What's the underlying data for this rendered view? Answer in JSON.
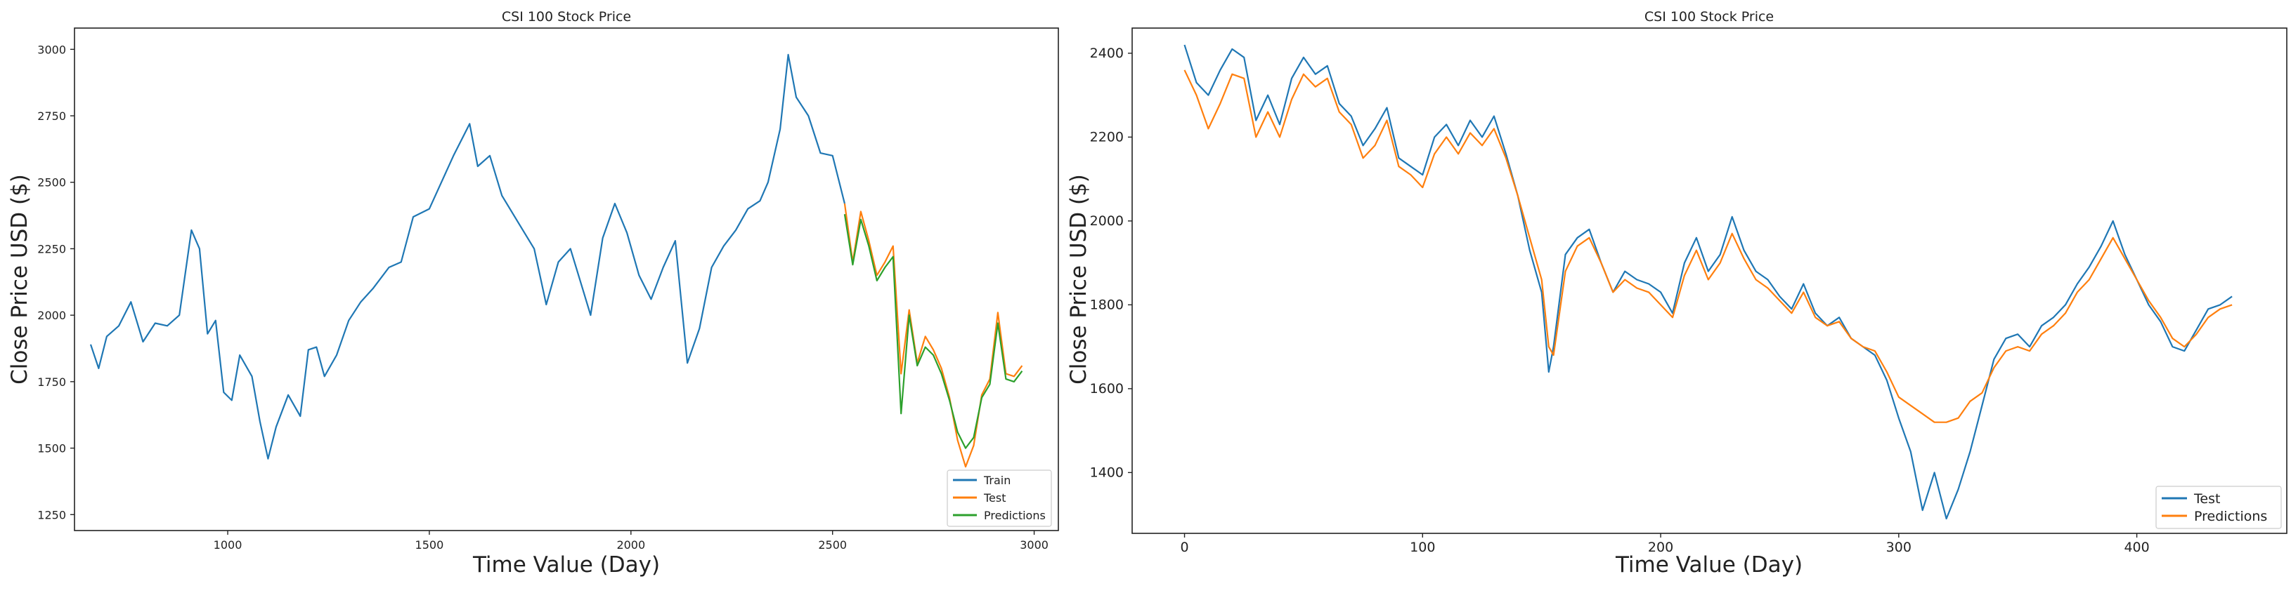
{
  "colors": {
    "train": "#1f77b4",
    "test": "#ff7f0e",
    "predictions": "#2ca02c"
  },
  "chart_data": [
    {
      "type": "line",
      "title": "CSI 100 Stock Price",
      "xlabel": "Time Value (Day)",
      "ylabel": "Close Price USD ($)",
      "xlim": [
        620,
        3060
      ],
      "ylim": [
        1190,
        3080
      ],
      "xticks": [
        1000,
        1500,
        2000,
        2500,
        3000
      ],
      "xtick_labels": [
        "1000",
        "1500",
        "2000",
        "2500",
        "3000"
      ],
      "yticks": [
        1250,
        1500,
        1750,
        2000,
        2250,
        2500,
        2750,
        3000
      ],
      "ytick_labels": [
        "1250",
        "1500",
        "1750",
        "2000",
        "2250",
        "2500",
        "2750",
        "3000"
      ],
      "legend_position": "lower-right",
      "grid": false,
      "series": [
        {
          "name": "Train",
          "color": "#1f77b4",
          "x": [
            660,
            680,
            700,
            730,
            760,
            790,
            820,
            850,
            880,
            910,
            930,
            950,
            970,
            990,
            1010,
            1030,
            1060,
            1080,
            1100,
            1120,
            1150,
            1180,
            1200,
            1220,
            1240,
            1270,
            1300,
            1330,
            1360,
            1400,
            1430,
            1460,
            1500,
            1530,
            1560,
            1600,
            1620,
            1650,
            1680,
            1720,
            1760,
            1790,
            1820,
            1850,
            1880,
            1900,
            1930,
            1960,
            1990,
            2020,
            2050,
            2080,
            2110,
            2140,
            2170,
            2200,
            2230,
            2260,
            2290,
            2320,
            2340,
            2370,
            2390,
            2410,
            2440,
            2470,
            2500,
            2530
          ],
          "values": [
            1890,
            1800,
            1920,
            1960,
            2050,
            1900,
            1970,
            1960,
            2000,
            2320,
            2250,
            1930,
            1980,
            1710,
            1680,
            1850,
            1770,
            1600,
            1460,
            1580,
            1700,
            1620,
            1870,
            1880,
            1770,
            1850,
            1980,
            2050,
            2100,
            2180,
            2200,
            2370,
            2400,
            2500,
            2600,
            2720,
            2560,
            2600,
            2450,
            2350,
            2250,
            2040,
            2200,
            2250,
            2100,
            2000,
            2290,
            2420,
            2310,
            2150,
            2060,
            2180,
            2280,
            1820,
            1950,
            2180,
            2260,
            2320,
            2400,
            2430,
            2500,
            2700,
            2980,
            2820,
            2750,
            2610,
            2600,
            2420
          ]
        },
        {
          "name": "Test",
          "color": "#ff7f0e",
          "x": [
            2530,
            2550,
            2570,
            2590,
            2610,
            2630,
            2650,
            2670,
            2690,
            2710,
            2730,
            2750,
            2770,
            2790,
            2810,
            2830,
            2850,
            2870,
            2890,
            2910,
            2930,
            2950,
            2970
          ],
          "values": [
            2420,
            2200,
            2390,
            2280,
            2150,
            2200,
            2260,
            1780,
            2020,
            1820,
            1920,
            1870,
            1800,
            1690,
            1530,
            1430,
            1510,
            1700,
            1760,
            2010,
            1780,
            1770,
            1810
          ]
        },
        {
          "name": "Predictions",
          "color": "#2ca02c",
          "x": [
            2530,
            2550,
            2570,
            2590,
            2610,
            2630,
            2650,
            2670,
            2690,
            2710,
            2730,
            2750,
            2770,
            2790,
            2810,
            2830,
            2850,
            2870,
            2890,
            2910,
            2930,
            2950,
            2970
          ],
          "values": [
            2380,
            2190,
            2360,
            2260,
            2130,
            2180,
            2220,
            1630,
            2000,
            1810,
            1880,
            1850,
            1780,
            1680,
            1560,
            1500,
            1540,
            1690,
            1740,
            1970,
            1760,
            1750,
            1790
          ]
        }
      ]
    },
    {
      "type": "line",
      "title": "CSI 100 Stock Price",
      "xlabel": "Time Value (Day)",
      "ylabel": "Close Price USD ($)",
      "xlim": [
        -22,
        463
      ],
      "ylim": [
        1255,
        2460
      ],
      "xticks": [
        0,
        100,
        200,
        300,
        400
      ],
      "xtick_labels": [
        "0",
        "100",
        "200",
        "300",
        "400"
      ],
      "yticks": [
        1400,
        1600,
        1800,
        2000,
        2200,
        2400
      ],
      "ytick_labels": [
        "1400",
        "1600",
        "1800",
        "2000",
        "2200",
        "2400"
      ],
      "legend_position": "lower-right",
      "grid": false,
      "series": [
        {
          "name": "Test",
          "color": "#1f77b4",
          "x": [
            0,
            5,
            10,
            15,
            20,
            25,
            30,
            35,
            40,
            45,
            50,
            55,
            60,
            65,
            70,
            75,
            80,
            85,
            90,
            95,
            100,
            105,
            110,
            115,
            120,
            125,
            130,
            135,
            140,
            145,
            150,
            153,
            155,
            160,
            165,
            170,
            175,
            180,
            185,
            190,
            195,
            200,
            205,
            210,
            215,
            220,
            225,
            230,
            235,
            240,
            245,
            250,
            255,
            260,
            265,
            270,
            275,
            280,
            285,
            290,
            295,
            300,
            305,
            310,
            315,
            320,
            325,
            330,
            335,
            340,
            345,
            350,
            355,
            360,
            365,
            370,
            375,
            380,
            385,
            390,
            395,
            400,
            405,
            410,
            415,
            420,
            425,
            430,
            435,
            440
          ],
          "values": [
            2420,
            2330,
            2300,
            2360,
            2410,
            2390,
            2240,
            2300,
            2230,
            2340,
            2390,
            2350,
            2370,
            2280,
            2250,
            2180,
            2220,
            2270,
            2150,
            2130,
            2110,
            2200,
            2230,
            2180,
            2240,
            2200,
            2250,
            2160,
            2060,
            1930,
            1830,
            1640,
            1700,
            1920,
            1960,
            1980,
            1900,
            1830,
            1880,
            1860,
            1850,
            1830,
            1780,
            1900,
            1960,
            1880,
            1920,
            2010,
            1930,
            1880,
            1860,
            1820,
            1790,
            1850,
            1780,
            1750,
            1770,
            1720,
            1700,
            1680,
            1620,
            1530,
            1450,
            1310,
            1400,
            1290,
            1360,
            1450,
            1560,
            1670,
            1720,
            1730,
            1700,
            1750,
            1770,
            1800,
            1850,
            1890,
            1940,
            2000,
            1920,
            1860,
            1800,
            1760,
            1700,
            1690,
            1740,
            1790,
            1800,
            1820
          ]
        },
        {
          "name": "Predictions",
          "color": "#ff7f0e",
          "x": [
            0,
            5,
            10,
            15,
            20,
            25,
            30,
            35,
            40,
            45,
            50,
            55,
            60,
            65,
            70,
            75,
            80,
            85,
            90,
            95,
            100,
            105,
            110,
            115,
            120,
            125,
            130,
            135,
            140,
            145,
            150,
            153,
            155,
            160,
            165,
            170,
            175,
            180,
            185,
            190,
            195,
            200,
            205,
            210,
            215,
            220,
            225,
            230,
            235,
            240,
            245,
            250,
            255,
            260,
            265,
            270,
            275,
            280,
            285,
            290,
            295,
            300,
            305,
            310,
            315,
            320,
            325,
            330,
            335,
            340,
            345,
            350,
            355,
            360,
            365,
            370,
            375,
            380,
            385,
            390,
            395,
            400,
            405,
            410,
            415,
            420,
            425,
            430,
            435,
            440
          ],
          "values": [
            2360,
            2300,
            2220,
            2280,
            2350,
            2340,
            2200,
            2260,
            2200,
            2290,
            2350,
            2320,
            2340,
            2260,
            2230,
            2150,
            2180,
            2240,
            2130,
            2110,
            2080,
            2160,
            2200,
            2160,
            2210,
            2180,
            2220,
            2150,
            2060,
            1960,
            1860,
            1700,
            1680,
            1880,
            1940,
            1960,
            1900,
            1830,
            1860,
            1840,
            1830,
            1800,
            1770,
            1870,
            1930,
            1860,
            1900,
            1970,
            1910,
            1860,
            1840,
            1810,
            1780,
            1830,
            1770,
            1750,
            1760,
            1720,
            1700,
            1690,
            1640,
            1580,
            1560,
            1540,
            1520,
            1520,
            1530,
            1570,
            1590,
            1650,
            1690,
            1700,
            1690,
            1730,
            1750,
            1780,
            1830,
            1860,
            1910,
            1960,
            1910,
            1860,
            1810,
            1770,
            1720,
            1700,
            1730,
            1770,
            1790,
            1800
          ]
        }
      ]
    }
  ]
}
